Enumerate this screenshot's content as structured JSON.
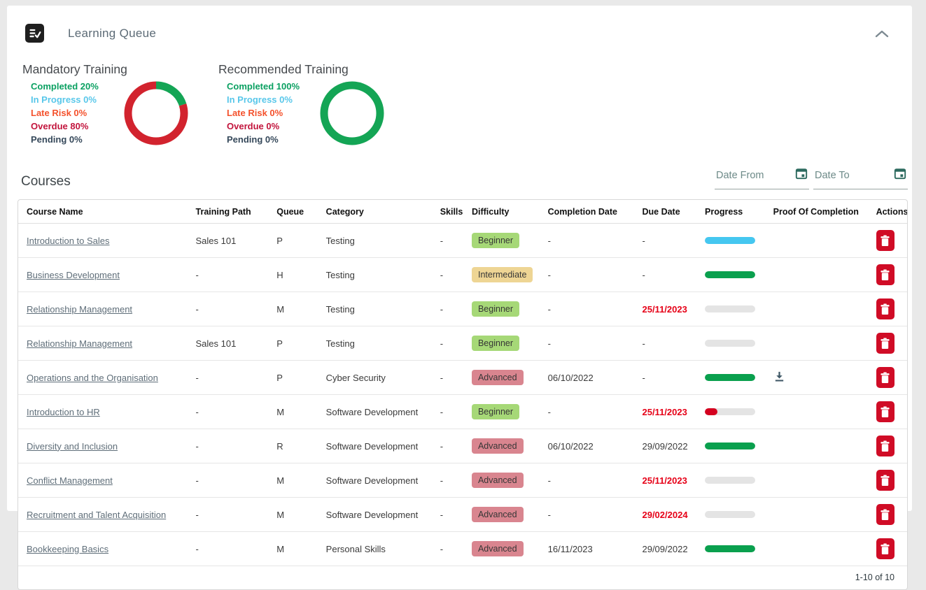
{
  "panel": {
    "title": "Learning Queue"
  },
  "charts": [
    {
      "title": "Mandatory Training",
      "legend": [
        {
          "label": "Completed 20%",
          "color": "#0aa061"
        },
        {
          "label": "In Progress 0%",
          "color": "#58c7ea"
        },
        {
          "label": "Late Risk 0%",
          "color": "#f4512c"
        },
        {
          "label": "Overdue 80%",
          "color": "#c2143c"
        },
        {
          "label": "Pending 0%",
          "color": "#35485a"
        }
      ],
      "donut_segments": [
        {
          "name": "Completed",
          "pct": 20,
          "color": "#14a555"
        },
        {
          "name": "Overdue",
          "pct": 80,
          "color": "#d2232e"
        }
      ]
    },
    {
      "title": "Recommended Training",
      "legend": [
        {
          "label": "Completed 100%",
          "color": "#0aa061"
        },
        {
          "label": "In Progress 0%",
          "color": "#58c7ea"
        },
        {
          "label": "Late Risk 0%",
          "color": "#f4512c"
        },
        {
          "label": "Overdue 0%",
          "color": "#c2143c"
        },
        {
          "label": "Pending 0%",
          "color": "#35485a"
        }
      ],
      "donut_segments": [
        {
          "name": "Completed",
          "pct": 100,
          "color": "#14a555"
        }
      ]
    }
  ],
  "courses_section": {
    "heading": "Courses",
    "date_from_placeholder": "Date From",
    "date_to_placeholder": "Date To"
  },
  "difficulty_colors": {
    "Beginner": "#a6d877",
    "Intermediate": "#eed594",
    "Advanced": "#d9858f"
  },
  "progress_colors": {
    "blue": "#45c7f0",
    "green": "#0aa04e",
    "red": "#d4001f",
    "gray": "#e4e4e4"
  },
  "table": {
    "columns": [
      "Course Name",
      "Training Path",
      "Queue",
      "Category",
      "Skills",
      "Difficulty",
      "Completion Date",
      "Due Date",
      "Progress",
      "Proof Of Completion",
      "Actions"
    ],
    "rows": [
      {
        "course_name": "Introduction to Sales",
        "training_path": "Sales 101",
        "queue": "P",
        "category": "Testing",
        "skills": "-",
        "difficulty": "Beginner",
        "completion_date": "-",
        "due_date": "-",
        "due_overdue": false,
        "progress_pct": 100,
        "progress_color": "blue",
        "proof": false
      },
      {
        "course_name": "Business Development",
        "training_path": "-",
        "queue": "H",
        "category": "Testing",
        "skills": "-",
        "difficulty": "Intermediate",
        "completion_date": "-",
        "due_date": "-",
        "due_overdue": false,
        "progress_pct": 100,
        "progress_color": "green",
        "proof": false
      },
      {
        "course_name": "Relationship Management",
        "training_path": "-",
        "queue": "M",
        "category": "Testing",
        "skills": "-",
        "difficulty": "Beginner",
        "completion_date": "-",
        "due_date": "25/11/2023",
        "due_overdue": true,
        "progress_pct": 0,
        "progress_color": "gray",
        "proof": false
      },
      {
        "course_name": "Relationship Management",
        "training_path": "Sales 101",
        "queue": "P",
        "category": "Testing",
        "skills": "-",
        "difficulty": "Beginner",
        "completion_date": "-",
        "due_date": "-",
        "due_overdue": false,
        "progress_pct": 0,
        "progress_color": "gray",
        "proof": false
      },
      {
        "course_name": "Operations and the Organisation",
        "training_path": "-",
        "queue": "P",
        "category": "Cyber Security",
        "skills": "-",
        "difficulty": "Advanced",
        "completion_date": "06/10/2022",
        "due_date": "-",
        "due_overdue": false,
        "progress_pct": 100,
        "progress_color": "green",
        "proof": true
      },
      {
        "course_name": "Introduction to HR",
        "training_path": "-",
        "queue": "M",
        "category": "Software Development",
        "skills": "-",
        "difficulty": "Beginner",
        "completion_date": "-",
        "due_date": "25/11/2023",
        "due_overdue": true,
        "progress_pct": 25,
        "progress_color": "red",
        "proof": false
      },
      {
        "course_name": "Diversity and Inclusion",
        "training_path": "-",
        "queue": "R",
        "category": "Software Development",
        "skills": "-",
        "difficulty": "Advanced",
        "completion_date": "06/10/2022",
        "due_date": "29/09/2022",
        "due_overdue": false,
        "progress_pct": 100,
        "progress_color": "green",
        "proof": false
      },
      {
        "course_name": "Conflict Management",
        "training_path": "-",
        "queue": "M",
        "category": "Software Development",
        "skills": "-",
        "difficulty": "Advanced",
        "completion_date": "-",
        "due_date": "25/11/2023",
        "due_overdue": true,
        "progress_pct": 0,
        "progress_color": "gray",
        "proof": false
      },
      {
        "course_name": "Recruitment and Talent Acquisition",
        "training_path": "-",
        "queue": "M",
        "category": "Software Development",
        "skills": "-",
        "difficulty": "Advanced",
        "completion_date": "-",
        "due_date": "29/02/2024",
        "due_overdue": true,
        "progress_pct": 0,
        "progress_color": "gray",
        "proof": false
      },
      {
        "course_name": "Bookkeeping Basics",
        "training_path": "-",
        "queue": "M",
        "category": "Personal Skills",
        "skills": "-",
        "difficulty": "Advanced",
        "completion_date": "16/11/2023",
        "due_date": "29/09/2022",
        "due_overdue": false,
        "progress_pct": 100,
        "progress_color": "green",
        "proof": false
      }
    ],
    "footer": "1-10 of 10"
  }
}
